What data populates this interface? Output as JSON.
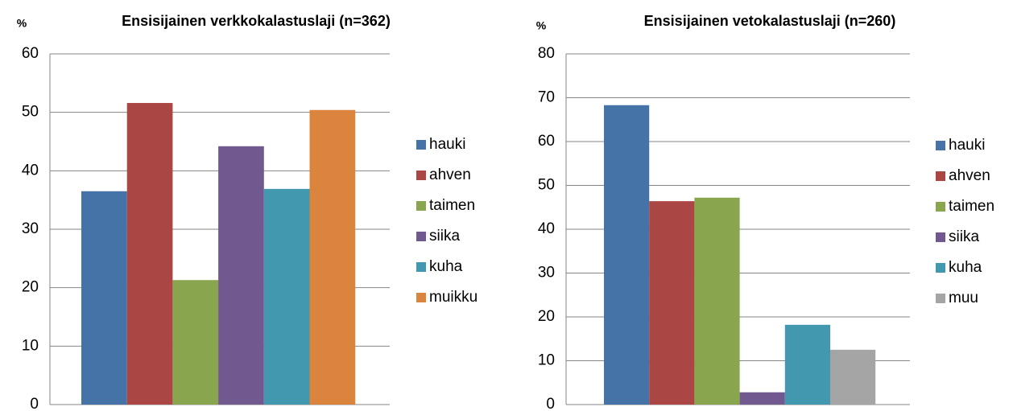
{
  "chart_data": [
    {
      "type": "bar",
      "title": "Ensisijainen verkkokalastuslaji (n=362)",
      "y_label": "%",
      "ylim": [
        0,
        60
      ],
      "yticks": [
        0,
        10,
        20,
        30,
        40,
        50,
        60
      ],
      "grid": true,
      "legend": "right",
      "series": [
        {
          "name": "hauki",
          "color": "#4572a7",
          "values": [
            36.5
          ]
        },
        {
          "name": "ahven",
          "color": "#aa4643",
          "values": [
            51.6
          ]
        },
        {
          "name": "taimen",
          "color": "#89a54e",
          "values": [
            21.3
          ]
        },
        {
          "name": "siika",
          "color": "#71588f",
          "values": [
            44.2
          ]
        },
        {
          "name": "kuha",
          "color": "#4198af",
          "values": [
            36.9
          ]
        },
        {
          "name": "muikku",
          "color": "#db843d",
          "values": [
            50.4
          ]
        }
      ]
    },
    {
      "type": "bar",
      "title": "Ensisijainen vetokalastuslaji (n=260)",
      "y_label": "%",
      "ylim": [
        0,
        80
      ],
      "yticks": [
        0,
        10,
        20,
        30,
        40,
        50,
        60,
        70,
        80
      ],
      "grid": true,
      "legend": "right",
      "series": [
        {
          "name": "hauki",
          "color": "#4572a7",
          "values": [
            68.3
          ]
        },
        {
          "name": "ahven",
          "color": "#aa4643",
          "values": [
            46.4
          ]
        },
        {
          "name": "taimen",
          "color": "#89a54e",
          "values": [
            47.2
          ]
        },
        {
          "name": "siika",
          "color": "#71588f",
          "values": [
            2.8
          ]
        },
        {
          "name": "kuha",
          "color": "#4198af",
          "values": [
            18.2
          ]
        },
        {
          "name": "muu",
          "color": "#a5a5a5",
          "values": [
            12.5
          ]
        }
      ]
    }
  ]
}
